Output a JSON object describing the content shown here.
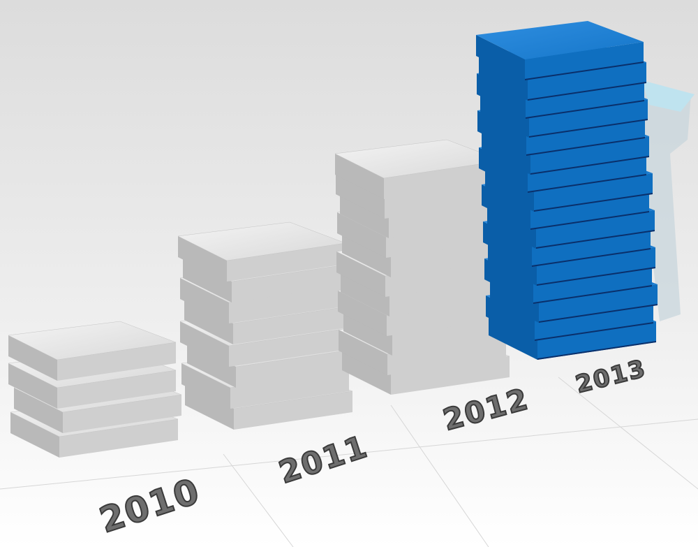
{
  "labels": [
    "2010",
    "2011",
    "2012",
    "2013"
  ]
}
